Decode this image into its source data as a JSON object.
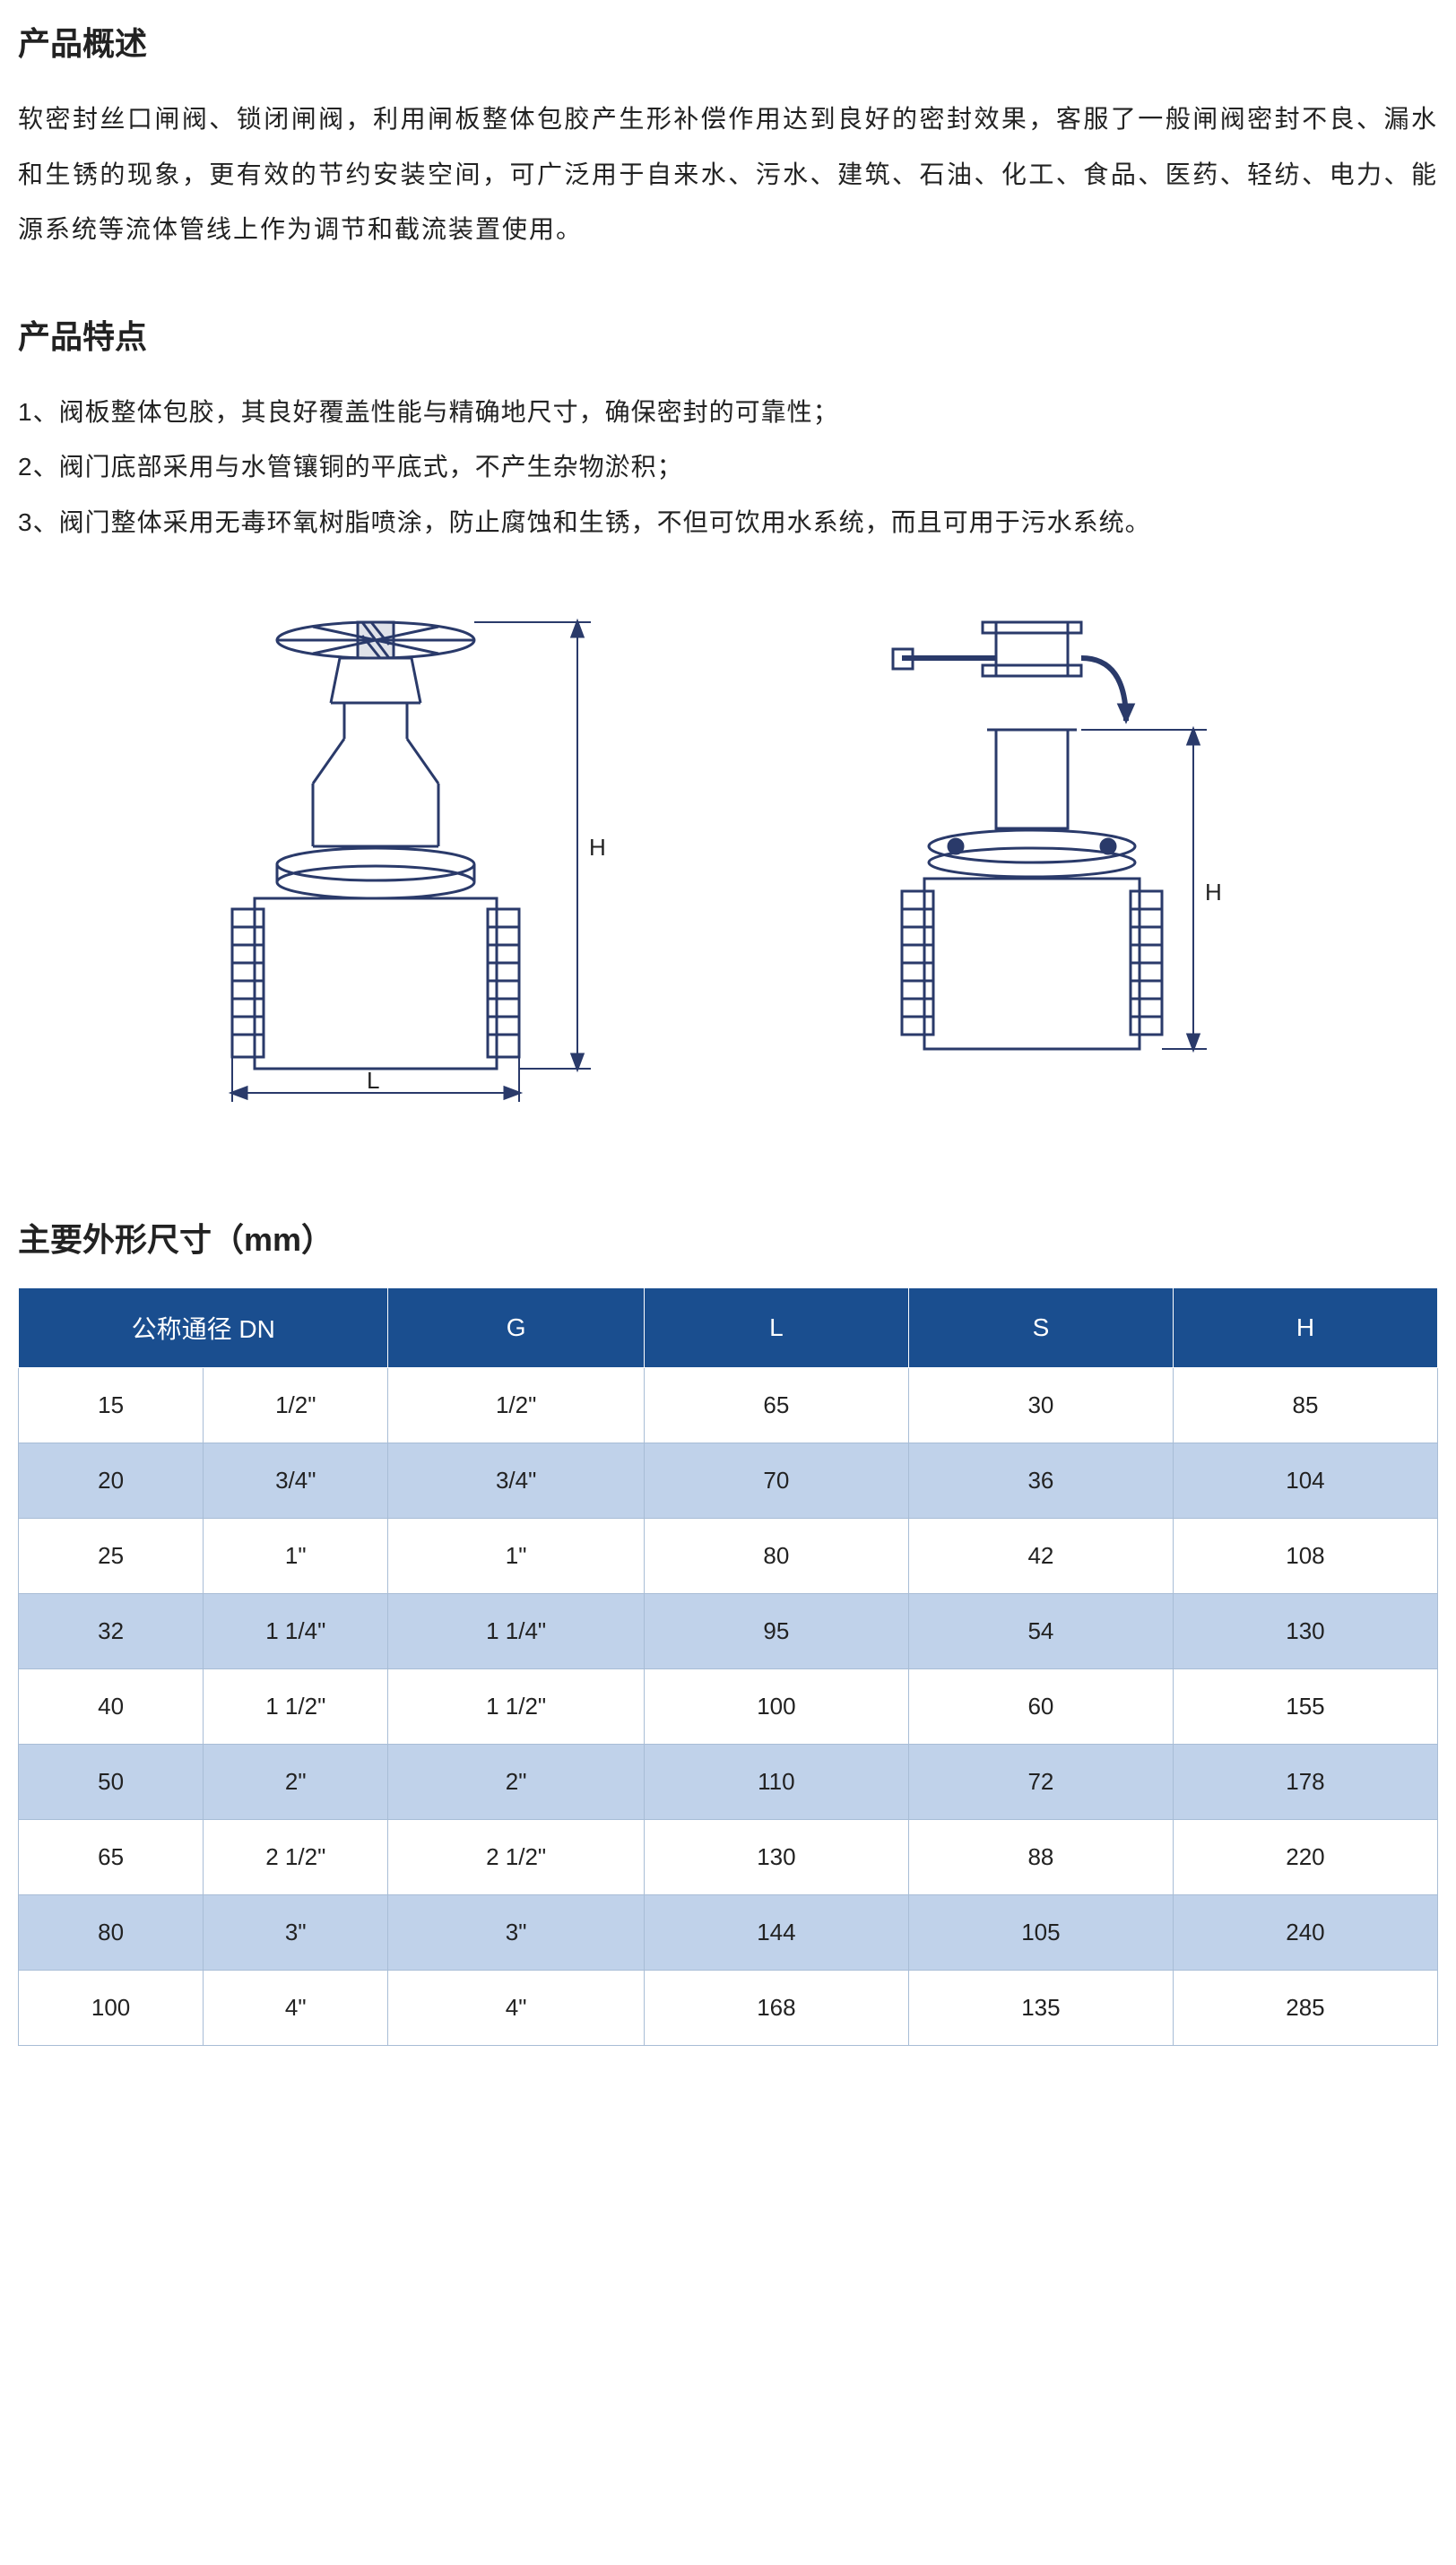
{
  "overview": {
    "heading": "产品概述",
    "text": "软密封丝口闸阀、锁闭闸阀，利用闸板整体包胶产生形补偿作用达到良好的密封效果，客服了一般闸阀密封不良、漏水和生锈的现象，更有效的节约安装空间，可广泛用于自来水、污水、建筑、石油、化工、食品、医药、轻纺、电力、能源系统等流体管线上作为调节和截流装置使用。"
  },
  "features": {
    "heading": "产品特点",
    "items": [
      "1、阀板整体包胶，其良好覆盖性能与精确地尺寸，确保密封的可靠性；",
      "2、阀门底部采用与水管镶铜的平底式，不产生杂物淤积；",
      "3、阀门整体采用无毒环氧树脂喷涂，防止腐蚀和生锈，不但可饮用水系统，而且可用于污水系统。"
    ]
  },
  "diagram": {
    "labelH": "H",
    "labelL": "L",
    "stroke": "#2a3a6a"
  },
  "table": {
    "heading": "主要外形尺寸（mm）",
    "header_bg": "#1a4e8f",
    "row_even_bg": "#ffffff",
    "row_odd_bg": "#c0d2ea",
    "border_color": "#a8bdd6",
    "columns": [
      "公称通径 DN",
      "G",
      "L",
      "S",
      "H"
    ],
    "rows": [
      [
        "15",
        "1/2\"",
        "1/2\"",
        "65",
        "30",
        "85"
      ],
      [
        "20",
        "3/4\"",
        "3/4\"",
        "70",
        "36",
        "104"
      ],
      [
        "25",
        "1\"",
        "1\"",
        "80",
        "42",
        "108"
      ],
      [
        "32",
        "1  1/4\"",
        "1  1/4\"",
        "95",
        "54",
        "130"
      ],
      [
        "40",
        "1  1/2\"",
        "1  1/2\"",
        "100",
        "60",
        "155"
      ],
      [
        "50",
        "2\"",
        "2\"",
        "110",
        "72",
        "178"
      ],
      [
        "65",
        "2  1/2\"",
        "2  1/2\"",
        "130",
        "88",
        "220"
      ],
      [
        "80",
        "3\"",
        "3\"",
        "144",
        "105",
        "240"
      ],
      [
        "100",
        "4\"",
        "4\"",
        "168",
        "135",
        "285"
      ]
    ]
  }
}
